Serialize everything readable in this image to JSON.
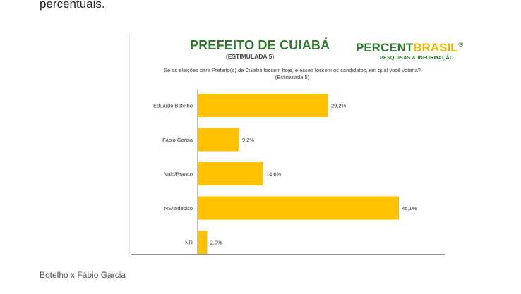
{
  "page": {
    "top_text": "percentuais.",
    "caption": "Botelho x Fábio Garcia"
  },
  "chart_data": {
    "type": "bar",
    "orientation": "horizontal",
    "title": "PREFEITO DE CUIABÁ",
    "subtitle": "(ESTIMULADA 5)",
    "question": "Se as eleições para Prefeito(a) de Cuiabá fossem hoje, e esses fossem os candidatos, em qual você votaria? (Estimulada 5)",
    "categories": [
      "Eduardo Botelho",
      "Fábio Garcia",
      "Nulo/Branco",
      "NS/Indeciso",
      "NR"
    ],
    "values": [
      29.2,
      9.2,
      14.6,
      45.1,
      2.0
    ],
    "value_labels": [
      "29,2%",
      "9,2%",
      "14,6%",
      "45,1%",
      "2,0%"
    ],
    "xlim": [
      0,
      50
    ],
    "grid": false,
    "legend": "none",
    "bar_color": "#ffc000",
    "axis_color": "#7f7f7f"
  },
  "logo": {
    "part1": "PERCENT",
    "part2": "BRASIL",
    "registered": "®",
    "tagline": "PESQUISAS & INFORMAÇÃO",
    "color_green": "#2f7a2f",
    "color_yellow": "#f0b400"
  }
}
